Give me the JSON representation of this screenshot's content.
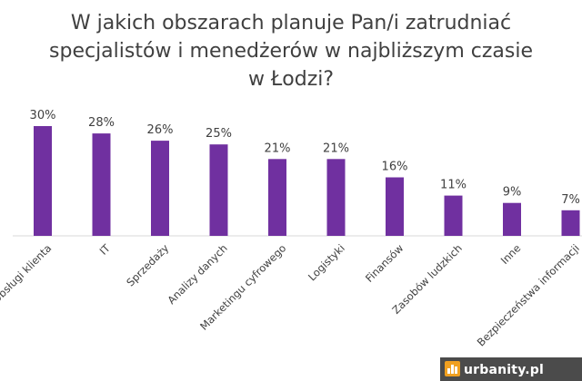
{
  "chart_data": {
    "type": "bar",
    "title_lines": [
      "W jakich obszarach planuje Pan/i zatrudniać",
      "specjalistów i menedżerów w najbliższym czasie",
      "w Łodzi?"
    ],
    "categories": [
      "Obsługi klienta",
      "IT",
      "Sprzedaży",
      "Analizy danych",
      "Marketingu cyfrowego",
      "Logistyki",
      "Finansów",
      "Zasobów ludzkich",
      "Inne",
      "Bezpieczeństwa informacji"
    ],
    "values": [
      30,
      28,
      26,
      25,
      21,
      21,
      16,
      11,
      9,
      7
    ],
    "value_labels": [
      "30%",
      "28%",
      "26%",
      "25%",
      "21%",
      "21%",
      "16%",
      "11%",
      "9%",
      "7%"
    ],
    "ylim": [
      0,
      30
    ],
    "xlabel": "",
    "ylabel": "",
    "grid": false,
    "bar_color": "#7030A0"
  },
  "watermark": {
    "text": "urbanity.pl"
  },
  "colors": {
    "text": "#404040",
    "axis": "#d9d9d9",
    "watermark_bg": "#2b2b2b",
    "watermark_logo": "#f0a020"
  }
}
